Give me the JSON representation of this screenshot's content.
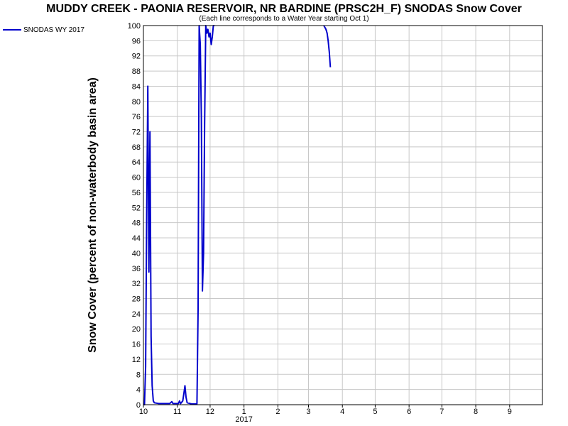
{
  "chart_data": {
    "type": "line",
    "title": "MUDDY CREEK - PAONIA RESERVOIR, NR BARDINE (PRSC2H_F) SNODAS Snow Cover",
    "subtitle": "(Each line corresponds to a Water Year starting Oct 1)",
    "ylabel": "Snow Cover (percent of non-waterbody basin area)",
    "xlabel": "",
    "ylim": [
      0,
      100
    ],
    "yticks": [
      0,
      4,
      8,
      12,
      16,
      20,
      24,
      28,
      32,
      36,
      40,
      44,
      48,
      52,
      56,
      60,
      64,
      68,
      72,
      76,
      80,
      84,
      88,
      92,
      96,
      100
    ],
    "x_tick_labels": [
      "10",
      "11",
      "12",
      "1",
      "2",
      "3",
      "4",
      "5",
      "6",
      "7",
      "8",
      "9"
    ],
    "x_year_label": "2017",
    "grid": true,
    "legend_position": "top-left",
    "series": [
      {
        "name": "SNODAS WY 2017",
        "color": "#0000cc",
        "points": [
          [
            "2016-10-01",
            0
          ],
          [
            "2016-10-02",
            0
          ],
          [
            "2016-10-03",
            10
          ],
          [
            "2016-10-04",
            50
          ],
          [
            "2016-10-05",
            84
          ],
          [
            "2016-10-06",
            35
          ],
          [
            "2016-10-07",
            72
          ],
          [
            "2016-10-08",
            18
          ],
          [
            "2016-10-09",
            5
          ],
          [
            "2016-10-10",
            1
          ],
          [
            "2016-10-11",
            0.5
          ],
          [
            "2016-10-15",
            0.3
          ],
          [
            "2016-10-20",
            0.3
          ],
          [
            "2016-10-25",
            0.3
          ],
          [
            "2016-10-27",
            0.8
          ],
          [
            "2016-10-28",
            0.3
          ],
          [
            "2016-11-02",
            0.3
          ],
          [
            "2016-11-03",
            1
          ],
          [
            "2016-11-04",
            0.3
          ],
          [
            "2016-11-06",
            1
          ],
          [
            "2016-11-07",
            3
          ],
          [
            "2016-11-08",
            5
          ],
          [
            "2016-11-09",
            2
          ],
          [
            "2016-11-10",
            0.5
          ],
          [
            "2016-11-14",
            0.2
          ],
          [
            "2016-11-19",
            0.2
          ],
          [
            "2016-11-20",
            25
          ],
          [
            "2016-11-21",
            100
          ],
          [
            "2016-11-22",
            95
          ],
          [
            "2016-11-23",
            76
          ],
          [
            "2016-11-24",
            30
          ],
          [
            "2016-11-25",
            40
          ],
          [
            "2016-11-26",
            74
          ],
          [
            "2016-11-27",
            100
          ],
          [
            "2016-11-28",
            98
          ],
          [
            "2016-11-29",
            99
          ],
          [
            "2016-11-30",
            97
          ],
          [
            "2016-12-01",
            98
          ],
          [
            "2016-12-02",
            95
          ],
          [
            "2016-12-03",
            97
          ],
          [
            "2016-12-04",
            100
          ],
          [
            "2016-12-05",
            100
          ],
          [
            "2017-03-15",
            100
          ],
          [
            "2017-03-17",
            99
          ],
          [
            "2017-03-18",
            98
          ],
          [
            "2017-03-19",
            96
          ],
          [
            "2017-03-20",
            93
          ],
          [
            "2017-03-21",
            89
          ]
        ]
      }
    ]
  }
}
